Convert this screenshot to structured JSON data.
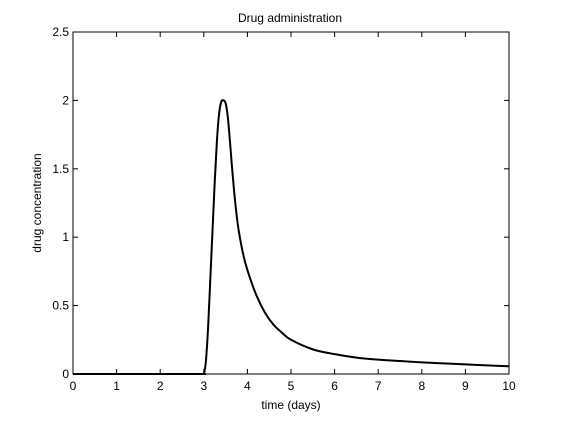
{
  "chart_data": {
    "type": "line",
    "title": "Drug administration",
    "xlabel": "time (days)",
    "ylabel": "drug concentration",
    "xlim": [
      0,
      10
    ],
    "ylim": [
      0,
      2.5
    ],
    "x_ticks": [
      "0",
      "1",
      "2",
      "3",
      "4",
      "5",
      "6",
      "7",
      "8",
      "9",
      "10"
    ],
    "y_ticks": [
      "0",
      "0.5",
      "1",
      "1.5",
      "2",
      "2.5"
    ],
    "grid": false,
    "series": [
      {
        "color": "#000000",
        "x": [
          0,
          1,
          2,
          2.95,
          3.0,
          3.05,
          3.1,
          3.15,
          3.2,
          3.25,
          3.3,
          3.35,
          3.4,
          3.45,
          3.5,
          3.55,
          3.6,
          3.65,
          3.7,
          3.75,
          3.8,
          3.9,
          4.0,
          4.2,
          4.4,
          4.6,
          4.8,
          5.0,
          5.5,
          6.0,
          6.5,
          7.0,
          7.5,
          8.0,
          8.5,
          9.0,
          9.5,
          10.0
        ],
        "y": [
          0,
          0,
          0,
          0,
          0.0,
          0.1,
          0.35,
          0.7,
          1.05,
          1.4,
          1.7,
          1.9,
          1.99,
          2.0,
          1.98,
          1.88,
          1.7,
          1.5,
          1.32,
          1.17,
          1.05,
          0.88,
          0.76,
          0.58,
          0.45,
          0.36,
          0.3,
          0.25,
          0.18,
          0.145,
          0.12,
          0.105,
          0.095,
          0.085,
          0.078,
          0.07,
          0.063,
          0.057
        ]
      }
    ]
  }
}
